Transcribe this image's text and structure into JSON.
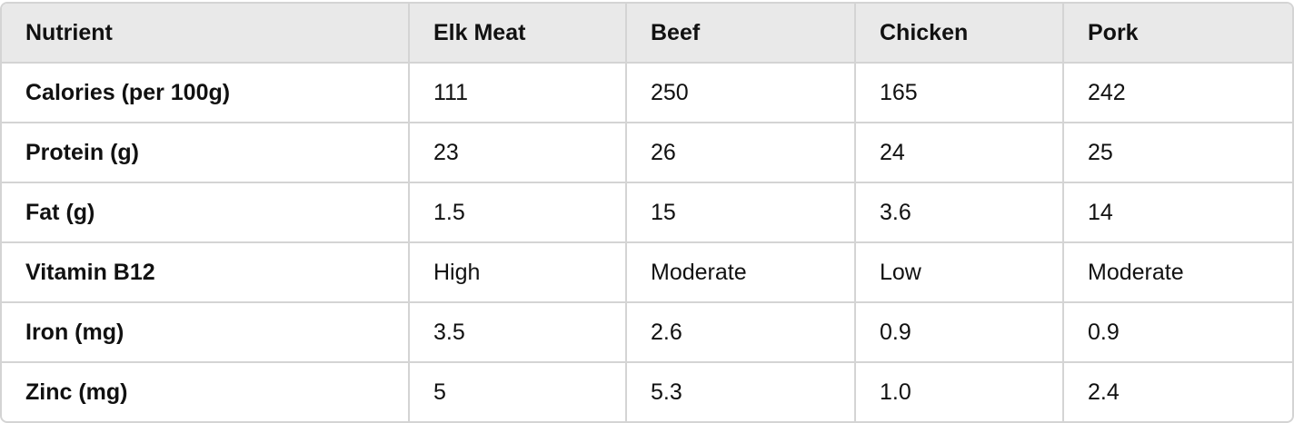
{
  "table": {
    "header": [
      "Nutrient",
      "Elk Meat",
      "Beef",
      "Chicken",
      "Pork"
    ],
    "rows": [
      [
        "Calories (per 100g)",
        "111",
        "250",
        "165",
        "242"
      ],
      [
        "Protein (g)",
        "23",
        "26",
        "24",
        "25"
      ],
      [
        "Fat (g)",
        "1.5",
        "15",
        "3.6",
        "14"
      ],
      [
        "Vitamin B12",
        "High",
        "Moderate",
        "Low",
        "Moderate"
      ],
      [
        "Iron (mg)",
        "3.5",
        "2.6",
        "0.9",
        "0.9"
      ],
      [
        "Zinc (mg)",
        "5",
        "5.3",
        "1.0",
        "2.4"
      ]
    ]
  }
}
